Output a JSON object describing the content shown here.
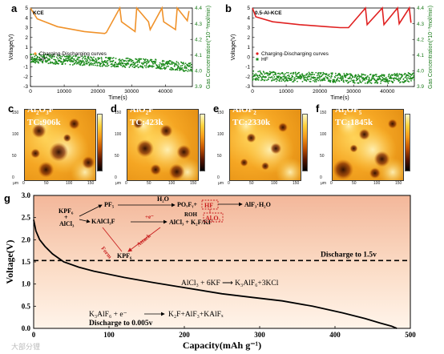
{
  "panels": {
    "a": {
      "letter": "a",
      "label": "KCE",
      "xlabel": "Time(s)",
      "ylabel_left": "Voltage(V)",
      "ylabel_right": "Gas Concentration(*10⁻³mol/min)",
      "legend_charge": "Charging-Discharging curves",
      "legend_hf": "HF",
      "x_ticks": [
        "0",
        "10000",
        "20000",
        "30000",
        "40000"
      ],
      "y_left_ticks": [
        "5",
        "4",
        "3",
        "2",
        "1",
        "0",
        "-1",
        "-2",
        "-3"
      ],
      "y_right_ticks": [
        "4.4",
        "4.3",
        "4.2",
        "4.1",
        "4.0",
        "3.9"
      ]
    },
    "b": {
      "letter": "b",
      "label": "0.5-Al-KCE",
      "xlabel": "Time(s)",
      "ylabel_left": "Voltage(V)",
      "ylabel_right": "Gas Concentration(*10⁻³mol/min)",
      "legend_charge": "Charging-Discharging curves",
      "legend_hf": "HF",
      "x_ticks": [
        "0",
        "10000",
        "20000",
        "30000",
        "40000"
      ],
      "y_left_ticks": [
        "5",
        "4",
        "3",
        "2",
        "1",
        "0",
        "-1",
        "-2",
        "-3"
      ],
      "y_right_ticks": [
        "4.4",
        "4.3",
        "4.2",
        "4.1",
        "4.0",
        "3.9"
      ]
    }
  },
  "maps": [
    {
      "letter": "c",
      "formula_main": "Al",
      "sub1": "2",
      "mid": "O",
      "sub2": "3",
      "tail": "F",
      "tc": "TC:906k"
    },
    {
      "letter": "d",
      "formula_main": "Al",
      "sub1": "",
      "mid": "O",
      "sub2": "2",
      "tail": "F",
      "tc": "TC:423k"
    },
    {
      "letter": "e",
      "formula_main": "Al",
      "sub1": "",
      "mid": "OF",
      "sub2": "2",
      "tail": "",
      "tc": "TC:2330k"
    },
    {
      "letter": "f",
      "formula_main": "Al",
      "sub1": "2",
      "mid": "OF",
      "sub2": "5",
      "tail": "",
      "tc": "TC:1845k"
    }
  ],
  "map_ticks": {
    "y": [
      "150",
      "100",
      "50",
      "0"
    ],
    "x": [
      "0",
      "50",
      "100",
      "150"
    ],
    "unit": "μm"
  },
  "panel_g": {
    "letter": "g",
    "xlabel": "Capacity(mAh g⁻¹)",
    "ylabel": "Voltage(V)",
    "x_ticks": [
      "0",
      "100",
      "200",
      "300",
      "400",
      "500"
    ],
    "y_ticks": [
      "0.0",
      "0.5",
      "1.0",
      "1.5",
      "2.0",
      "2.5",
      "3.0"
    ],
    "discharge_15": "Discharge to 1.5v",
    "reaction_mid": "AlCl₃ + 6KF ⟶ K₃AlF₆+3KCl",
    "reaction_bottom_left": "K₃AlF₆ + e⁻",
    "reaction_bottom_right": "K₂F+AlF₃+KAlFₓ",
    "discharge_0005": "Discharge to 0.005v",
    "scheme": {
      "kpf6": "KPF₆",
      "plus": "+",
      "alcl3": "AlCl₃",
      "pf5": "PF₅",
      "h2o": "H₂O",
      "po": "POₓFᵧ+",
      "hf": "HF",
      "kalcl3f": "KAlCl₃F",
      "e_minus": "+e⁻",
      "alcl3_k2f": "AlCl₃ + K₂F/KF",
      "roh": "ROH",
      "al2o3": "Al₂O₃",
      "alf3h2o": "AlF₃·H₂O",
      "form": "Form",
      "attack": "Attack",
      "kpf6_bottom": "KPF₆"
    }
  },
  "watermark": "大部分锂",
  "chart_data": [
    {
      "type": "line",
      "title": "KCE",
      "xlabel": "Time(s)",
      "ylabel": "Voltage(V)",
      "xlim": [
        0,
        48000
      ],
      "ylim": [
        -3,
        5
      ],
      "y2lim": [
        3.9,
        4.4
      ],
      "series": [
        {
          "name": "Charging-Discharging curves",
          "x": [
            0,
            2000,
            8000,
            16000,
            22000,
            22500,
            26500,
            27000,
            31000,
            31500,
            35000,
            35500,
            39000,
            39500,
            43000,
            43500,
            46500,
            47000
          ],
          "y": [
            5,
            3.9,
            3.1,
            2.6,
            2.4,
            2.5,
            5,
            3.6,
            2.6,
            5,
            3.6,
            2.8,
            5,
            3.6,
            2.8,
            5,
            3.7,
            4.7
          ]
        },
        {
          "name": "HF",
          "x": [
            0,
            10000,
            20000,
            30000,
            40000,
            48000
          ],
          "y": [
            4.08,
            4.07,
            4.06,
            4.05,
            4.04,
            4.02
          ],
          "axis": "right",
          "style": "scatter"
        }
      ]
    },
    {
      "type": "line",
      "title": "0.5-Al-KCE",
      "xlabel": "Time(s)",
      "ylabel": "Voltage(V)",
      "xlim": [
        0,
        48000
      ],
      "ylim": [
        -3,
        5
      ],
      "y2lim": [
        3.9,
        4.4
      ],
      "series": [
        {
          "name": "Charging-Discharging curves",
          "x": [
            0,
            1000,
            6000,
            14000,
            22000,
            26000,
            28500,
            33500,
            34000,
            38500,
            39000,
            43000,
            43500,
            46500,
            47000
          ],
          "y": [
            5,
            4.1,
            3.6,
            3.3,
            3.1,
            3.0,
            3.0,
            5,
            3.3,
            5,
            3.3,
            5,
            3.4,
            5,
            3.5
          ]
        },
        {
          "name": "HF",
          "x": [
            0,
            10000,
            20000,
            30000,
            40000,
            48000
          ],
          "y": [
            3.97,
            3.96,
            3.96,
            3.95,
            3.95,
            3.96
          ],
          "axis": "right",
          "style": "scatter"
        }
      ]
    },
    {
      "type": "line",
      "title": "",
      "xlabel": "Capacity(mAh g⁻¹)",
      "ylabel": "Voltage(V)",
      "xlim": [
        0,
        500
      ],
      "ylim": [
        0,
        3.0
      ],
      "series": [
        {
          "x": [
            0,
            3,
            8,
            15,
            25,
            40,
            60,
            80,
            120,
            160,
            200,
            250,
            290,
            330,
            370,
            410,
            440,
            460,
            475,
            482
          ],
          "y": [
            2.45,
            2.2,
            2.0,
            1.85,
            1.68,
            1.5,
            1.38,
            1.29,
            1.15,
            1.03,
            0.92,
            0.78,
            0.7,
            0.62,
            0.5,
            0.35,
            0.22,
            0.12,
            0.05,
            0.0
          ]
        }
      ],
      "reference_line": {
        "y": 1.53,
        "label": "Discharge to 1.5v"
      }
    }
  ]
}
